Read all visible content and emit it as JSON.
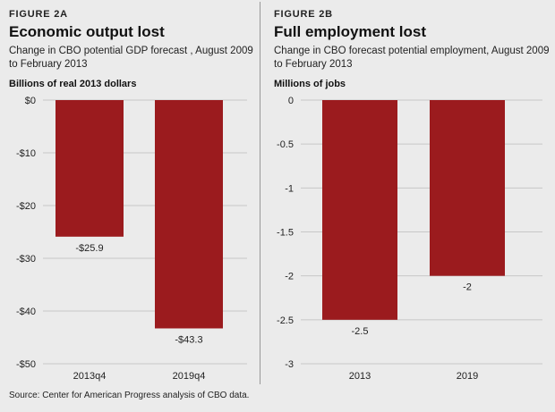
{
  "figures": [
    {
      "label": "FIGURE 2A",
      "title": "Economic output lost",
      "subtitle": "Change in CBO potential GDP forecast , August 2009 to February 2013",
      "unit": "Billions of real 2013 dollars"
    },
    {
      "label": "FIGURE 2B",
      "title": "Full employment lost",
      "subtitle": "Change in CBO forecast potential employment, August 2009 to February 2013",
      "unit": "Millions of jobs"
    }
  ],
  "source": "Source: Center for American Progress analysis of CBO data.",
  "colors": {
    "bar": "#9b1b1e",
    "grid": "#c7c7c7",
    "background": "#ebebeb"
  },
  "chart_data": [
    {
      "type": "bar",
      "title": "Economic output lost",
      "categories": [
        "2013q4",
        "2019q4"
      ],
      "values": [
        -25.9,
        -43.3
      ],
      "value_labels": [
        "-$25.9",
        "-$43.3"
      ],
      "ylim": [
        -50,
        0
      ],
      "yticks": [
        0,
        -10,
        -20,
        -30,
        -40,
        -50
      ],
      "ytick_labels": [
        "$0",
        "-$10",
        "-$20",
        "-$30",
        "-$40",
        "-$50"
      ],
      "ylabel": "Billions of real 2013 dollars",
      "grid": true
    },
    {
      "type": "bar",
      "title": "Full employment lost",
      "categories": [
        "2013",
        "2019"
      ],
      "values": [
        -2.5,
        -2
      ],
      "value_labels": [
        "-2.5",
        "-2"
      ],
      "ylim": [
        -3,
        0
      ],
      "yticks": [
        0,
        -0.5,
        -1,
        -1.5,
        -2,
        -2.5,
        -3
      ],
      "ytick_labels": [
        "0",
        "-0.5",
        "-1",
        "-1.5",
        "-2",
        "-2.5",
        "-3"
      ],
      "ylabel": "Millions of jobs",
      "grid": true
    }
  ]
}
